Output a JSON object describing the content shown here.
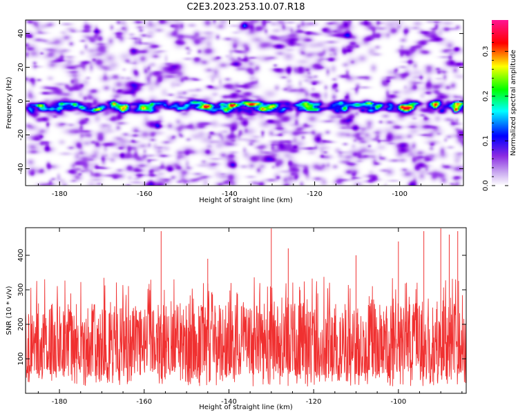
{
  "title": "C2E3.2023.253.10.07.R18",
  "chart_data": [
    {
      "type": "heatmap",
      "xlabel": "Height of straight line (km)",
      "ylabel": "Frequency (Hz)",
      "xlim": [
        -188,
        -85
      ],
      "ylim": [
        -50,
        48
      ],
      "x_ticks": [
        -180,
        -160,
        -140,
        -120,
        -100
      ],
      "y_ticks": [
        -40,
        -20,
        0,
        20,
        40
      ],
      "colorbar": {
        "label": "Normalized spectral amplitude",
        "range": [
          0,
          0.37
        ],
        "ticks": [
          "0.0",
          "0.1",
          "0.2",
          "0.3"
        ],
        "colors": [
          "#ffffff",
          "#8a2be2",
          "#0000ff",
          "#00ffff",
          "#00ff00",
          "#ffff00",
          "#ff0000",
          "#ff1493"
        ]
      },
      "ridge": {
        "frequency": -3,
        "peaks": [
          -178,
          -145,
          -139,
          -130,
          -122,
          -100,
          -92,
          -88
        ]
      },
      "grid": false
    },
    {
      "type": "line",
      "xlabel": "Height of straight line (km)",
      "ylabel": "SNR (10 * v/v)",
      "xlim": [
        -188,
        -84
      ],
      "ylim": [
        0,
        480
      ],
      "x_ticks": [
        -180,
        -160,
        -140,
        -120,
        -100
      ],
      "y_ticks": [
        100,
        200,
        300,
        400
      ],
      "series": [
        {
          "color": "#f03030",
          "median": 135,
          "band_low": 70,
          "band_high": 240,
          "spikes": [
            {
              "x": -156,
              "y": 470
            },
            {
              "x": -145,
              "y": 390
            },
            {
              "x": -130,
              "y": 478
            },
            {
              "x": -126,
              "y": 420
            },
            {
              "x": -110,
              "y": 400
            },
            {
              "x": -100,
              "y": 440
            },
            {
              "x": -94,
              "y": 470
            },
            {
              "x": -90,
              "y": 478
            },
            {
              "x": -88,
              "y": 460
            },
            {
              "x": -86,
              "y": 470
            }
          ]
        }
      ],
      "grid": false
    }
  ]
}
